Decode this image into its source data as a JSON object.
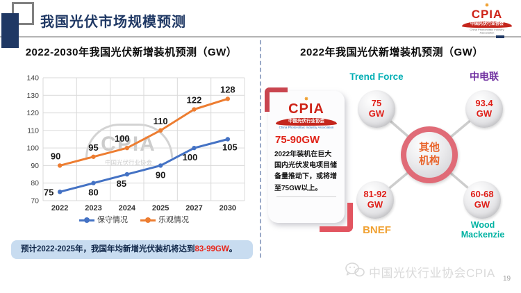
{
  "header": {
    "title": "我国光伏市场规模预测",
    "logo": {
      "sun_icon": "✸",
      "cpia": "CPIA",
      "banner": "中国光伏行业协会",
      "sub": "China Photovoltaic Industry Association"
    }
  },
  "colors": {
    "navy": "#1F3864",
    "conservative_blue": "#4472C4",
    "optimistic_orange": "#ED7D31",
    "highlight_red": "#E8251A",
    "center_ring": "#E06B77",
    "center_text": "#E8632A",
    "node_value_red": "#DF1F18"
  },
  "left_panel": {
    "title": "2022-2030年我国光伏新增装机预测（GW）",
    "watermark": {
      "line1": "CPIA",
      "line2": "中国光伏行业协会"
    },
    "note": {
      "prefix": "预计2022-2025年，我国年均新增光伏装机将达到",
      "highlight": "83-99GW",
      "suffix": "。"
    }
  },
  "chart_data": {
    "type": "line",
    "title": "2022-2030年我国光伏新增装机预测（GW）",
    "categories": [
      "2022",
      "2023",
      "2024",
      "2025",
      "2027",
      "2030"
    ],
    "series": [
      {
        "name": "保守情况",
        "color": "#4472C4",
        "values": [
          75,
          80,
          85,
          90,
          100,
          105
        ]
      },
      {
        "name": "乐观情况",
        "color": "#ED7D31",
        "values": [
          90,
          95,
          100,
          110,
          122,
          128
        ]
      }
    ],
    "xlabel": "",
    "ylabel": "",
    "ylim": [
      70,
      140
    ],
    "ytick_step": 10,
    "grid": true,
    "legend_position": "bottom"
  },
  "right_panel": {
    "title": "2022年我国光伏新增装机预测（GW）",
    "card": {
      "logo": {
        "sun_icon": "✸",
        "cpia": "CPIA",
        "banner": "中国光伏行业协会",
        "sub": "China Photovoltaic Industry Association"
      },
      "range": "75-90GW",
      "body": "2022年装机在巨大国内光伏发电项目储备量推动下，或将增至75GW以上。"
    },
    "center_label": "其他机构",
    "nodes": [
      {
        "org": "Trend Force",
        "value": "75",
        "unit": "GW",
        "org_color": "#00AEB4"
      },
      {
        "org": "中电联",
        "value": "93.4",
        "unit": "GW",
        "org_color": "#7030A0"
      },
      {
        "org": "BNEF",
        "value": "81-92",
        "unit": "GW",
        "org_color": "#F0A132"
      },
      {
        "org": "Wood Mackenzie",
        "value": "60-68",
        "unit": "GW",
        "org_color": "#00B2A2"
      }
    ]
  },
  "footer": {
    "text": "中国光伏行业协会CPIA",
    "page": "19"
  }
}
